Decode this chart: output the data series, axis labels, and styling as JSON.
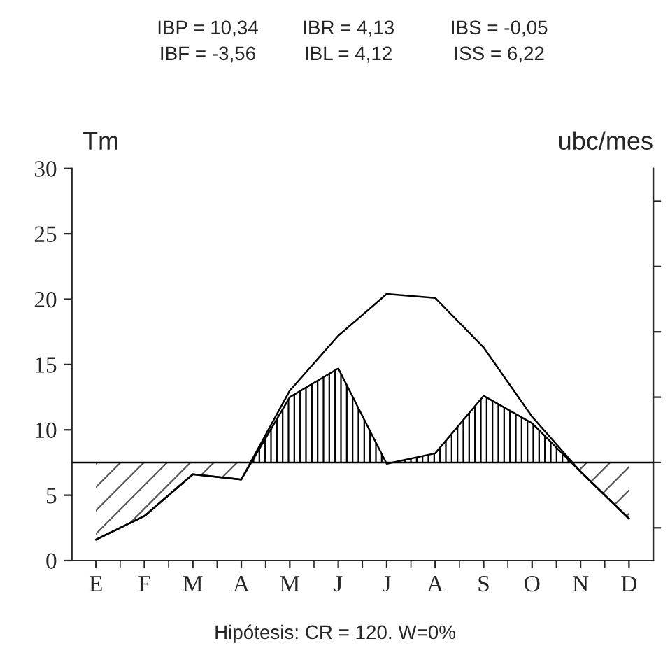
{
  "chart_data": {
    "type": "line",
    "annotations": [
      "IBP = 10,34",
      "IBR = 4,13",
      "IBS = -0,05",
      "IBF = -3,56",
      "IBL = 4,12",
      "ISS = 6,22",
      "Hipótesis: CR = 120. W=0%"
    ],
    "ylabel": "Tm",
    "y2label": "ubc/mes",
    "categories": [
      "E",
      "F",
      "M",
      "A",
      "M",
      "J",
      "J",
      "A",
      "S",
      "O",
      "N",
      "D"
    ],
    "series": [
      {
        "color": "#000000",
        "values": [
          1.6,
          3.4,
          6.6,
          6.2,
          13.0,
          17.2,
          20.4,
          20.1,
          16.3,
          11.0,
          6.8,
          3.2
        ]
      },
      {
        "color": "#000000",
        "values": [
          1.6,
          3.4,
          6.6,
          6.2,
          12.5,
          14.7,
          7.4,
          8.2,
          12.6,
          10.5,
          6.8,
          3.2
        ]
      }
    ],
    "ylim": [
      0,
      30
    ],
    "yticks": [
      0,
      5,
      10,
      15,
      20,
      25,
      30
    ],
    "ref_lines": [
      {
        "axis": "y",
        "value": 7.5,
        "color": "#000000",
        "line_style": "solid"
      }
    ],
    "grid": false,
    "legend": false,
    "marker": "none",
    "line_style": "solid"
  }
}
